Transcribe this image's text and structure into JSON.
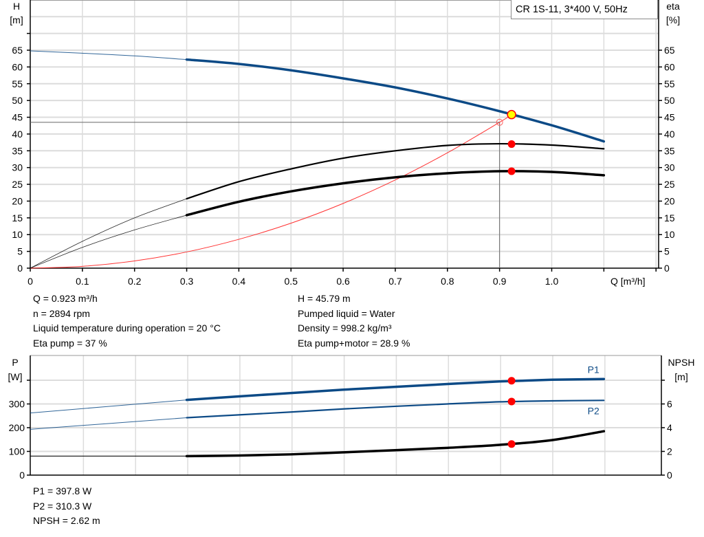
{
  "chart_data": [
    {
      "type": "line",
      "title": "CR 1S-11, 3*400 V, 50Hz",
      "xlabel": "Q [m³/h]",
      "ylabel_left": {
        "name": "H",
        "unit": "[m]"
      },
      "ylabel_right": {
        "name": "eta",
        "unit": "[%]"
      },
      "xlim": [
        0,
        1.2
      ],
      "ylim": [
        0,
        75
      ],
      "x_ticks": [
        "0",
        "0.1",
        "0.2",
        "0.3",
        "0.4",
        "0.5",
        "0.6",
        "0.7",
        "0.8",
        "0.9",
        "1.0"
      ],
      "y_ticks": [
        "0",
        "5",
        "10",
        "15",
        "20",
        "25",
        "30",
        "35",
        "40",
        "45",
        "50",
        "55",
        "60",
        "65"
      ],
      "grid": true,
      "series": [
        {
          "id": "H",
          "color": "#0c4a86",
          "x": [
            0,
            0.1,
            0.2,
            0.3,
            0.4,
            0.5,
            0.6,
            0.7,
            0.8,
            0.9,
            1.0,
            1.1
          ],
          "y": [
            64.8,
            64.1,
            63.3,
            62.2,
            60.9,
            59.0,
            56.6,
            53.9,
            50.6,
            46.8,
            42.6,
            37.8
          ]
        },
        {
          "id": "eta-pump",
          "color": "#000000",
          "x": [
            0,
            0.1,
            0.2,
            0.3,
            0.4,
            0.5,
            0.6,
            0.7,
            0.8,
            0.9,
            1.0,
            1.1
          ],
          "y": [
            0,
            8.0,
            15.0,
            20.7,
            25.8,
            29.6,
            32.8,
            35.0,
            36.6,
            37.1,
            36.7,
            35.6
          ]
        },
        {
          "id": "eta-total",
          "color": "#000000",
          "x": [
            0,
            0.1,
            0.2,
            0.3,
            0.4,
            0.5,
            0.6,
            0.7,
            0.8,
            0.9,
            1.0,
            1.1
          ],
          "y": [
            0,
            6.2,
            11.4,
            15.8,
            19.8,
            22.9,
            25.3,
            27.1,
            28.3,
            28.9,
            28.7,
            27.7
          ]
        },
        {
          "id": "system-curve",
          "color": "#ff3030",
          "x": [
            0,
            0.1,
            0.2,
            0.3,
            0.4,
            0.5,
            0.6,
            0.7,
            0.8,
            0.9,
            0.923
          ],
          "y": [
            0,
            0.54,
            2.15,
            4.83,
            8.6,
            13.4,
            19.3,
            26.3,
            34.4,
            43.5,
            45.79
          ]
        }
      ],
      "duty_point": {
        "Q": 0.923,
        "H": 45.79,
        "eta_pump": 37,
        "eta_total": 28.9
      },
      "reference_point": {
        "Q": 0.9,
        "H": 43.5
      }
    },
    {
      "type": "line",
      "xlim": [
        0,
        1.2
      ],
      "ylabel_left": {
        "name": "P",
        "unit": "[W]"
      },
      "ylabel_right": {
        "name": "NPSH",
        "unit": "[m]"
      },
      "ylim": [
        0,
        400
      ],
      "ylim_right": [
        0,
        8
      ],
      "y_ticks": [
        "0",
        "100",
        "200",
        "300"
      ],
      "y_ticks_right": [
        "0",
        "2",
        "4",
        "6"
      ],
      "grid": true,
      "series": [
        {
          "id": "P1",
          "name": "P1",
          "color": "#0c4a86",
          "axis": "left",
          "x": [
            0,
            0.3,
            0.4,
            0.5,
            0.6,
            0.7,
            0.8,
            0.9,
            1.0,
            1.1
          ],
          "y": [
            262,
            317,
            332,
            346,
            360,
            372,
            384,
            395,
            402,
            405
          ]
        },
        {
          "id": "P2",
          "name": "P2",
          "color": "#0c4a86",
          "axis": "left",
          "x": [
            0,
            0.3,
            0.4,
            0.5,
            0.6,
            0.7,
            0.8,
            0.9,
            1.0,
            1.1
          ],
          "y": [
            193,
            242,
            254,
            266,
            279,
            290,
            300,
            309,
            313,
            315
          ]
        },
        {
          "id": "NPSH",
          "color": "#000000",
          "axis": "right",
          "x": [
            0,
            0.3,
            0.4,
            0.5,
            0.6,
            0.7,
            0.8,
            0.9,
            1.0,
            1.1
          ],
          "y": [
            1.6,
            1.6,
            1.65,
            1.75,
            1.92,
            2.1,
            2.3,
            2.55,
            2.95,
            3.7
          ]
        }
      ],
      "duty_point": {
        "Q": 0.923,
        "P1": 397.8,
        "P2": 310.3,
        "NPSH": 2.62
      }
    }
  ],
  "info": {
    "left": [
      "Q = 0.923 m³/h",
      "n = 2894 rpm",
      "Liquid temperature during operation = 20 °C",
      "Eta pump = 37 %"
    ],
    "right": [
      "H = 45.79 m",
      "Pumped liquid = Water",
      "Density = 998.2 kg/m³",
      "Eta pump+motor = 28.9 %"
    ],
    "bottom": [
      "P1 = 397.8 W",
      "P2 = 310.3 W",
      "NPSH = 2.62 m"
    ]
  },
  "colors": {
    "duty_marker": "#ff0000",
    "duty_highlight": "#ffff00",
    "grid": "#dcdcdc"
  }
}
